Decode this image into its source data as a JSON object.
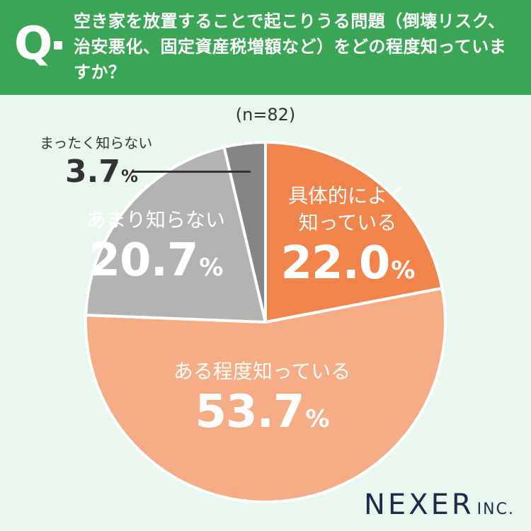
{
  "header": {
    "q_letter": "Q",
    "question": "空き家を放置することで起こりうる問題（倒壊リスク、治安悪化、固定資産税増額など）をどの程度知っていますか？"
  },
  "chart_data": {
    "type": "pie",
    "note": "(n=82)",
    "categories": [
      "具体的によく知っている",
      "ある程度知っている",
      "あまり知らない",
      "まったく知らない"
    ],
    "values": [
      22.0,
      53.7,
      20.7,
      3.7
    ],
    "labels_display": [
      "22.0",
      "53.7",
      "20.7",
      "3.7"
    ],
    "unit": "%",
    "colors": [
      "#f0844a",
      "#f6ad85",
      "#b3b3b3",
      "#858585"
    ],
    "start": "12 o'clock",
    "direction": "clockwise"
  },
  "labels": {
    "s0_line1": "具体的によく",
    "s0_line2": "知っている",
    "s1": "ある程度知っている",
    "s2": "あまり知らない",
    "s3": "まったく知らない"
  },
  "logo": {
    "main": "NEXER",
    "suffix": "INC."
  }
}
